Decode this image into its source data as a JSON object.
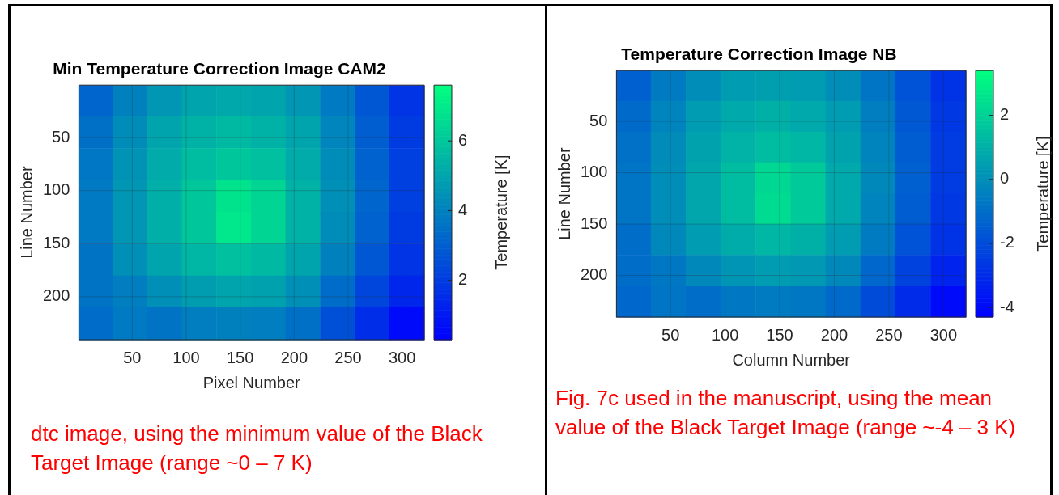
{
  "chart_data": [
    {
      "type": "heatmap",
      "title": "Min Temperature Correction Image CAM2",
      "xlabel": "Pixel Number",
      "ylabel": "Line Number",
      "clabel": "Temperature [K]",
      "x": [
        16,
        48,
        80,
        112,
        144,
        176,
        208,
        240,
        272,
        304
      ],
      "y": [
        15,
        45,
        75,
        105,
        135,
        165,
        195,
        225
      ],
      "xlim": [
        0.5,
        320.5
      ],
      "xticks": [
        50,
        100,
        150,
        200,
        250,
        300
      ],
      "ylim": [
        240.5,
        0.5
      ],
      "yticks": [
        50,
        100,
        150,
        200
      ],
      "clim": [
        0.3,
        7.6
      ],
      "cticks": [
        2,
        4,
        6
      ],
      "grid": true,
      "cells": [
        [
          3.2,
          4.0,
          4.6,
          5.0,
          5.1,
          5.0,
          4.6,
          3.8,
          2.8,
          1.8
        ],
        [
          3.5,
          4.3,
          5.0,
          5.4,
          5.6,
          5.4,
          5.0,
          4.1,
          3.0,
          2.0
        ],
        [
          3.7,
          4.5,
          5.2,
          5.7,
          6.0,
          5.8,
          5.2,
          4.3,
          3.1,
          2.1
        ],
        [
          3.8,
          4.6,
          5.3,
          6.0,
          6.8,
          6.4,
          5.4,
          4.4,
          3.2,
          2.1
        ],
        [
          3.8,
          4.6,
          5.3,
          6.0,
          6.9,
          6.4,
          5.4,
          4.3,
          3.1,
          2.0
        ],
        [
          3.6,
          4.4,
          5.0,
          5.5,
          5.8,
          5.6,
          5.0,
          4.0,
          2.8,
          1.8
        ],
        [
          3.6,
          3.9,
          4.4,
          4.8,
          5.0,
          4.9,
          4.4,
          3.4,
          2.3,
          1.4
        ],
        [
          3.4,
          3.8,
          3.6,
          3.9,
          4.0,
          3.9,
          3.5,
          2.6,
          1.6,
          0.6
        ]
      ],
      "annotations": [
        "dtc image, using the minimum value of the Black Target Image (range ~0 – 7 K)"
      ]
    },
    {
      "type": "heatmap",
      "title": "Temperature Correction Image NB",
      "xlabel": "Column Number",
      "ylabel": "Line Number",
      "clabel": "Temperature [K]",
      "x": [
        16,
        48,
        80,
        112,
        144,
        176,
        208,
        240,
        272,
        304
      ],
      "y": [
        15,
        45,
        75,
        105,
        135,
        165,
        195,
        225
      ],
      "xlim": [
        0.5,
        320.5
      ],
      "xticks": [
        50,
        100,
        150,
        200,
        250,
        300
      ],
      "ylim": [
        240.5,
        0.5
      ],
      "yticks": [
        50,
        100,
        150,
        200
      ],
      "clim": [
        -4.3,
        3.4
      ],
      "cticks": [
        -4,
        -2,
        0,
        2
      ],
      "grid": true,
      "cells": [
        [
          -1.4,
          -0.6,
          0.0,
          0.4,
          0.5,
          0.4,
          0.0,
          -0.8,
          -1.8,
          -2.8
        ],
        [
          -1.1,
          -0.3,
          0.4,
          0.8,
          1.0,
          0.8,
          0.4,
          -0.5,
          -1.6,
          -2.6
        ],
        [
          -0.9,
          -0.1,
          0.6,
          1.1,
          1.4,
          1.2,
          0.6,
          -0.3,
          -1.5,
          -2.5
        ],
        [
          -0.8,
          0.0,
          0.7,
          1.4,
          2.2,
          1.8,
          0.8,
          -0.2,
          -1.4,
          -2.5
        ],
        [
          -0.8,
          0.0,
          0.7,
          1.4,
          2.3,
          1.8,
          0.8,
          -0.3,
          -1.5,
          -2.6
        ],
        [
          -1.0,
          -0.2,
          0.4,
          0.9,
          1.2,
          1.0,
          0.4,
          -0.6,
          -1.8,
          -2.8
        ],
        [
          -1.0,
          -0.7,
          -0.2,
          0.2,
          0.4,
          0.3,
          -0.2,
          -1.2,
          -2.3,
          -3.2
        ],
        [
          -1.2,
          -0.8,
          -1.0,
          -0.7,
          -0.6,
          -0.7,
          -1.1,
          -2.0,
          -3.0,
          -4.0
        ]
      ],
      "annotations": [
        "Fig. 7c used in the manuscript, using the mean value of the Black Target Image (range ~-4 – 3 K)"
      ]
    }
  ]
}
